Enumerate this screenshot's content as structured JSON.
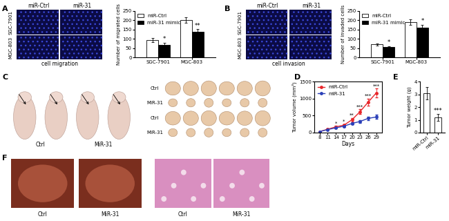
{
  "panel_labels": [
    "A",
    "B",
    "C",
    "D",
    "E",
    "F"
  ],
  "image_panels": {
    "A": {
      "column_labels": [
        "miR-Ctrl",
        "miR-31"
      ],
      "row_labels": [
        "SGC-7901",
        "MGC-803"
      ],
      "caption": "cell migration"
    },
    "B": {
      "column_labels": [
        "miR-Ctrl",
        "miR-31"
      ],
      "row_labels": [
        "SGC-7901",
        "MGC-803"
      ],
      "caption": "cell invasion"
    },
    "C": {
      "mouse_labels": [
        "Ctrl",
        "MiR-31"
      ],
      "tumor_row_labels": [
        "Ctrl",
        "MiR-31",
        "Ctrl",
        "MiR-31"
      ]
    },
    "F": {
      "liver_labels": [
        "Ctrl",
        "MiR-31"
      ],
      "histology_labels": [
        "Ctrl",
        "MiR-31"
      ]
    }
  },
  "chart_data": [
    {
      "type": "bar",
      "ylabel": "Number of migrated cells",
      "categories": [
        "SGC-7901",
        "MGC-803"
      ],
      "series": [
        {
          "name": "miR-Ctrl",
          "color": "#ffffff",
          "values": [
            93,
            200
          ],
          "errors": [
            12,
            15
          ]
        },
        {
          "name": "miR-31 mimic",
          "color": "#000000",
          "values": [
            68,
            140
          ],
          "errors": [
            12,
            12
          ]
        }
      ],
      "significance": [
        "*",
        "**"
      ],
      "ylim": [
        0,
        250
      ],
      "yticks": [
        0,
        50,
        100,
        150,
        200,
        250
      ],
      "legend": "upper left"
    },
    {
      "type": "bar",
      "ylabel": "Number of invaded cells",
      "categories": [
        "SGC-7901",
        "MGC-803"
      ],
      "series": [
        {
          "name": "miR-Ctrl",
          "color": "#ffffff",
          "values": [
            70,
            192
          ],
          "errors": [
            5,
            15
          ]
        },
        {
          "name": "miR-31 mimic",
          "color": "#000000",
          "values": [
            57,
            160
          ],
          "errors": [
            5,
            15
          ]
        }
      ],
      "significance": [
        "*",
        "*"
      ],
      "ylim": [
        0,
        250
      ],
      "yticks": [
        0,
        50,
        100,
        150,
        200,
        250
      ],
      "legend": "upper left"
    },
    {
      "type": "line",
      "xlabel": "Days",
      "ylabel": "Tumor volume (mm³)",
      "x": [
        8,
        11,
        14,
        17,
        20,
        23,
        26,
        29
      ],
      "series": [
        {
          "name": "miR-Ctrl",
          "color": "#e8262a",
          "marker": "o",
          "values": [
            30,
            100,
            170,
            220,
            380,
            620,
            900,
            1170
          ],
          "errors": [
            10,
            20,
            25,
            30,
            50,
            70,
            100,
            130
          ]
        },
        {
          "name": "miR-31",
          "color": "#2a3fb8",
          "marker": "o",
          "values": [
            30,
            90,
            140,
            190,
            270,
            330,
            420,
            460
          ],
          "errors": [
            10,
            15,
            20,
            25,
            30,
            40,
            50,
            60
          ]
        }
      ],
      "significance": [
        null,
        null,
        "*",
        "*",
        "**",
        "***",
        "***",
        "***"
      ],
      "xlim": [
        6,
        31
      ],
      "xticks": [
        8,
        11,
        14,
        17,
        20,
        23,
        26,
        29
      ],
      "ylim": [
        0,
        1500
      ],
      "yticks": [
        0,
        500,
        1000,
        1500
      ],
      "legend": "upper left"
    },
    {
      "type": "bar",
      "ylabel": "Tumor weight (g)",
      "categories": [
        "miR-Ctrl",
        "miR-31"
      ],
      "values": [
        3.1,
        1.2
      ],
      "errors": [
        0.5,
        0.25
      ],
      "colors": [
        "#ffffff",
        "#ffffff"
      ],
      "significance": [
        null,
        "***"
      ],
      "ylim": [
        0,
        4
      ],
      "yticks": [
        0,
        1,
        2,
        3,
        4
      ]
    }
  ]
}
